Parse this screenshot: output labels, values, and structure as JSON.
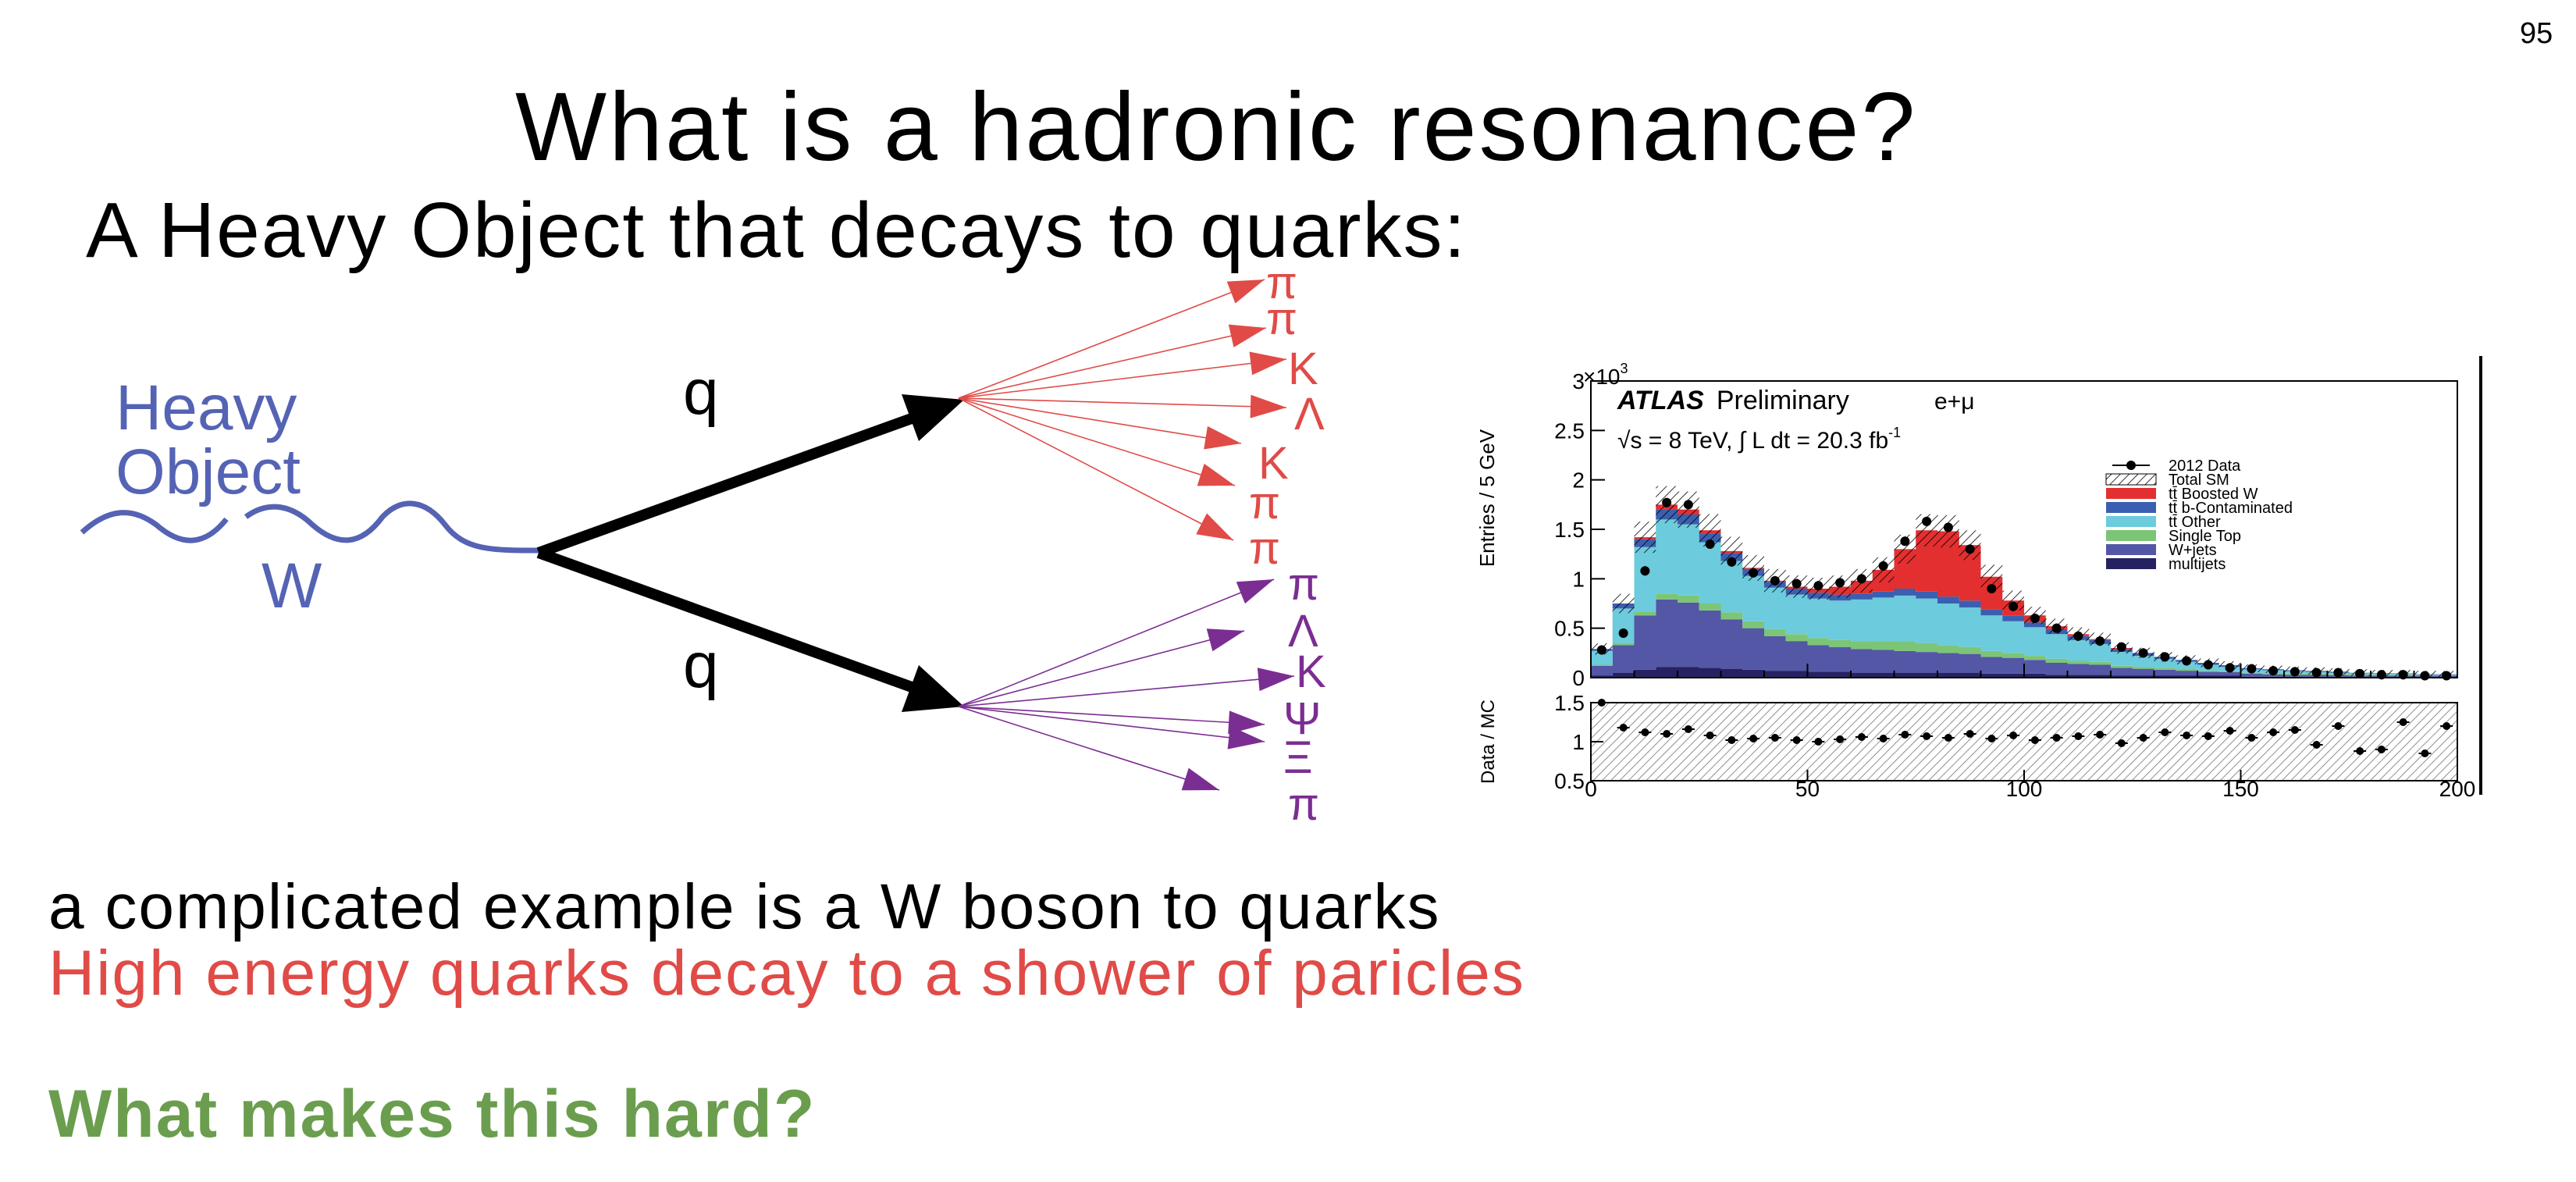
{
  "slide": {
    "number": "95",
    "title": "What is a hadronic resonance?",
    "subtitle": "A Heavy Object that decays to quarks:",
    "line1": "a complicated example is a W boson to quarks",
    "line2": "High energy quarks decay to a shower of paricles",
    "line3": "What makes this hard?"
  },
  "diagram": {
    "heavy_object_label": [
      "Heavy",
      "Object"
    ],
    "w_label": "W",
    "quark_label": "q",
    "upper_particles": [
      "π",
      "π",
      "K",
      "Λ",
      "K",
      "π",
      "π"
    ],
    "lower_particles": [
      "π",
      "Λ",
      "K",
      "Ψ",
      "Ξ",
      "π"
    ],
    "colors": {
      "heavy": "#5563b4",
      "upper": "#e04b47",
      "lower": "#7b2e92",
      "line": "#000000"
    }
  },
  "chart_data": [
    {
      "type": "area",
      "stacked": true,
      "experiment": "ATLAS",
      "experiment_suffix": "Preliminary",
      "channel": "e+μ",
      "energy_text": "√s = 8 TeV, ∫ L dt = 20.3 fb",
      "lumi_exp": "-1",
      "ylabel": "Entries / 5 GeV",
      "y_multiplier_base": "×10",
      "y_multiplier_exp": "3",
      "ylim": [
        0,
        3
      ],
      "yticks": [
        "0",
        "0.5",
        "1",
        "1.5",
        "2",
        "2.5",
        "3"
      ],
      "xlim": [
        0,
        200
      ],
      "bin_width": 5,
      "x": [
        2.5,
        7.5,
        12.5,
        17.5,
        22.5,
        27.5,
        32.5,
        37.5,
        42.5,
        47.5,
        52.5,
        57.5,
        62.5,
        67.5,
        72.5,
        77.5,
        82.5,
        87.5,
        92.5,
        97.5,
        102.5,
        107.5,
        112.5,
        117.5,
        122.5,
        127.5,
        132.5,
        137.5,
        142.5,
        147.5,
        152.5,
        157.5,
        162.5,
        167.5,
        172.5,
        177.5,
        182.5,
        187.5,
        192.5,
        197.5
      ],
      "series": [
        {
          "name": "multijets",
          "color": "#262262",
          "values": [
            0.02,
            0.05,
            0.08,
            0.11,
            0.11,
            0.1,
            0.09,
            0.08,
            0.07,
            0.07,
            0.06,
            0.06,
            0.05,
            0.05,
            0.05,
            0.05,
            0.05,
            0.05,
            0.04,
            0.04,
            0.04,
            0.03,
            0.03,
            0.03,
            0.02,
            0.02,
            0.02,
            0.02,
            0.02,
            0.02,
            0.01,
            0.01,
            0.01,
            0.01,
            0.01,
            0.01,
            0.01,
            0.01,
            0.01,
            0.01
          ]
        },
        {
          "name": "W+jets",
          "color": "#5357a6",
          "values": [
            0.1,
            0.28,
            0.55,
            0.68,
            0.65,
            0.58,
            0.5,
            0.42,
            0.35,
            0.3,
            0.27,
            0.25,
            0.24,
            0.23,
            0.22,
            0.21,
            0.2,
            0.19,
            0.17,
            0.16,
            0.14,
            0.12,
            0.11,
            0.1,
            0.08,
            0.07,
            0.06,
            0.05,
            0.04,
            0.035,
            0.03,
            0.025,
            0.02,
            0.018,
            0.015,
            0.012,
            0.01,
            0.01,
            0.01,
            0.01
          ]
        },
        {
          "name": "Single Top",
          "color": "#7cc576",
          "values": [
            0.01,
            0.02,
            0.04,
            0.06,
            0.07,
            0.07,
            0.07,
            0.07,
            0.07,
            0.07,
            0.07,
            0.07,
            0.08,
            0.09,
            0.1,
            0.09,
            0.08,
            0.07,
            0.06,
            0.05,
            0.04,
            0.04,
            0.03,
            0.03,
            0.02,
            0.02,
            0.02,
            0.02,
            0.01,
            0.01,
            0.01,
            0.01,
            0.01,
            0.01,
            0.01,
            0.01,
            0.01,
            0.01,
            0.005,
            0.005
          ]
        },
        {
          "name": "tt̄ Other",
          "color": "#6ccbdc",
          "values": [
            0.14,
            0.35,
            0.65,
            0.75,
            0.72,
            0.62,
            0.52,
            0.46,
            0.42,
            0.4,
            0.4,
            0.4,
            0.42,
            0.44,
            0.46,
            0.45,
            0.42,
            0.4,
            0.36,
            0.32,
            0.29,
            0.25,
            0.21,
            0.18,
            0.14,
            0.11,
            0.09,
            0.07,
            0.06,
            0.045,
            0.035,
            0.03,
            0.025,
            0.02,
            0.015,
            0.012,
            0.01,
            0.008,
            0.006,
            0.005
          ]
        },
        {
          "name": "tt̄ b-Contaminated",
          "color": "#3b5fb0",
          "values": [
            0.02,
            0.05,
            0.08,
            0.1,
            0.1,
            0.09,
            0.08,
            0.07,
            0.06,
            0.06,
            0.06,
            0.06,
            0.06,
            0.06,
            0.07,
            0.07,
            0.07,
            0.07,
            0.06,
            0.06,
            0.05,
            0.05,
            0.04,
            0.04,
            0.03,
            0.03,
            0.02,
            0.02,
            0.02,
            0.015,
            0.01,
            0.01,
            0.01,
            0.01,
            0.01,
            0.005,
            0.005,
            0.005,
            0.005,
            0.005
          ]
        },
        {
          "name": "tt̄ Boosted W",
          "color": "#e32f2f",
          "values": [
            0.0,
            0.0,
            0.02,
            0.05,
            0.05,
            0.03,
            0.02,
            0.01,
            0.01,
            0.02,
            0.04,
            0.08,
            0.13,
            0.22,
            0.4,
            0.62,
            0.66,
            0.56,
            0.33,
            0.15,
            0.07,
            0.03,
            0.02,
            0.01,
            0.01,
            0.0,
            0.0,
            0.0,
            0.0,
            0.0,
            0.0,
            0.0,
            0.0,
            0.0,
            0.0,
            0.0,
            0.0,
            0.0,
            0.0,
            0.0
          ]
        }
      ],
      "uncertainty_label": "Total SM",
      "data": {
        "name": "2012 Data",
        "values": [
          0.28,
          0.45,
          1.08,
          1.77,
          1.75,
          1.35,
          1.17,
          1.06,
          0.98,
          0.95,
          0.93,
          0.96,
          1.0,
          1.13,
          1.38,
          1.58,
          1.52,
          1.3,
          0.9,
          0.72,
          0.6,
          0.5,
          0.42,
          0.37,
          0.31,
          0.25,
          0.21,
          0.17,
          0.13,
          0.1,
          0.09,
          0.07,
          0.06,
          0.05,
          0.05,
          0.04,
          0.03,
          0.03,
          0.02,
          0.02
        ]
      },
      "legend_position": "top-right",
      "legend_order": [
        "2012 Data",
        "Total SM",
        "tt̄ Boosted W",
        "tt̄ b-Contaminated",
        "tt̄ Other",
        "Single Top",
        "W+jets",
        "multijets"
      ]
    },
    {
      "type": "scatter",
      "ylabel": "Data / MC",
      "ylim": [
        0.5,
        1.5
      ],
      "yticks": [
        "0.5",
        "1",
        "1.5"
      ],
      "xlim": [
        0,
        200
      ],
      "xticks": [
        "0",
        "50",
        "100",
        "150",
        "200"
      ],
      "values": [
        1.5,
        1.18,
        1.12,
        1.1,
        1.16,
        1.08,
        1.02,
        1.04,
        1.05,
        1.02,
        1.0,
        1.03,
        1.06,
        1.04,
        1.09,
        1.07,
        1.05,
        1.1,
        1.04,
        1.08,
        1.02,
        1.05,
        1.07,
        1.09,
        0.98,
        1.05,
        1.12,
        1.08,
        1.07,
        1.14,
        1.05,
        1.12,
        1.15,
        0.96,
        1.2,
        0.88,
        0.9,
        1.25,
        0.85,
        1.2
      ]
    }
  ]
}
